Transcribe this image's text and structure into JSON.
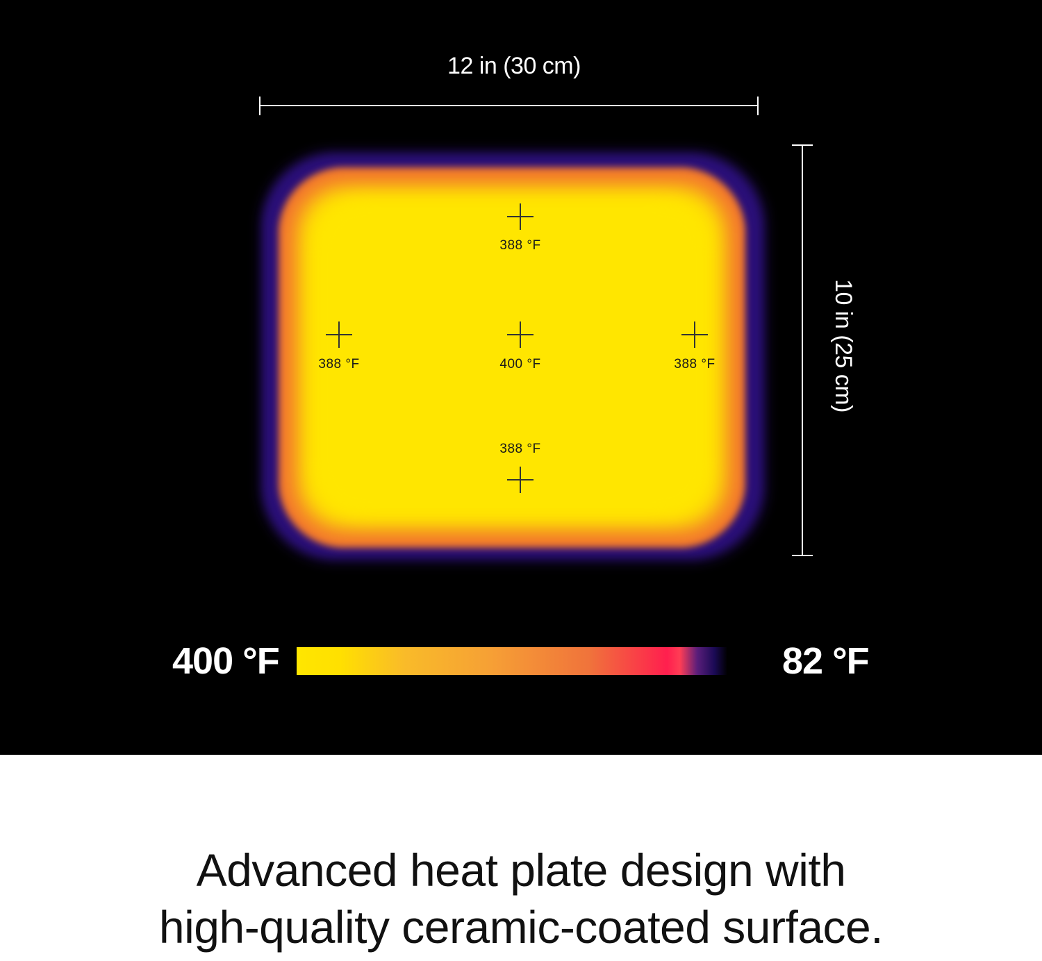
{
  "dimensions": {
    "width_label": "12 in (30 cm)",
    "height_label": "10 in (25 cm)"
  },
  "heat_map": {
    "points": {
      "top": "388 °F",
      "left": "388 °F",
      "center": "400 °F",
      "right": "388 °F",
      "bottom": "388 °F"
    },
    "colors": {
      "hot": "#ffe600",
      "warm": "#f0733b",
      "edge": "#2a0f78",
      "background": "#000000"
    }
  },
  "legend": {
    "max_label": "400 °F",
    "min_label": "82 °F"
  },
  "caption": {
    "line1": "Advanced heat plate design with",
    "line2": "high-quality ceramic-coated surface."
  }
}
